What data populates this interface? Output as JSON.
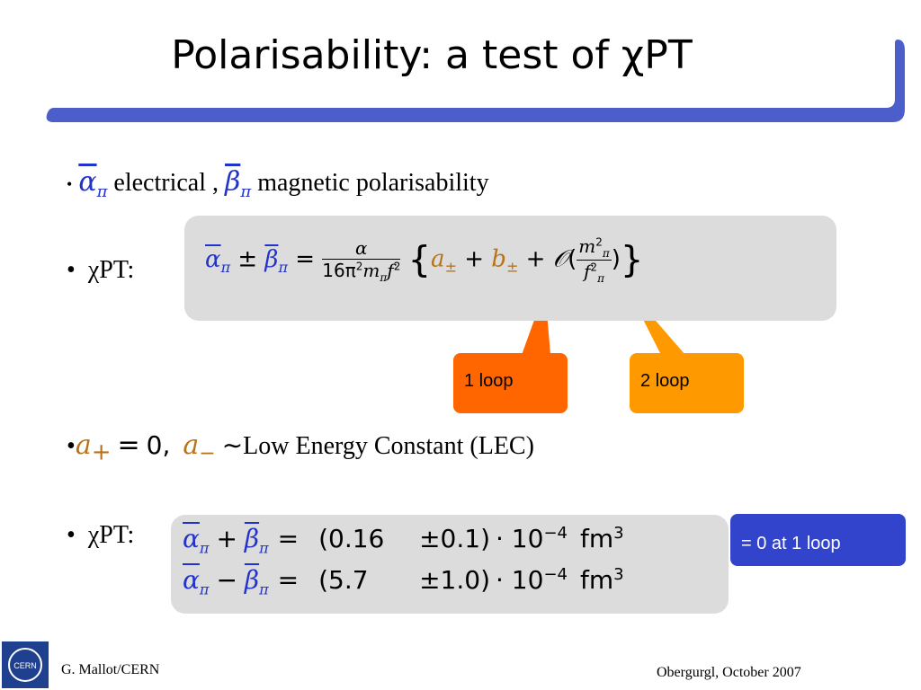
{
  "title": "Polarisability: a test of χPT",
  "symbols": {
    "alpha": "α",
    "beta": "β",
    "pi": "π",
    "eq": "=",
    "pm": "±",
    "plus": "+"
  },
  "bullet1": {
    "electrical": "electrical ,",
    "magnetic": "magnetic polarisability"
  },
  "bullet2": {
    "label": "χPT:",
    "formula": {
      "num": "α",
      "den": "16π",
      "two": "2",
      "m": "m",
      "f": "f",
      "open": "{",
      "a": "a",
      "b": "b",
      "O": "𝒪",
      "lp": "(",
      "rp": ")",
      "close": "}"
    }
  },
  "callouts": [
    "1 loop",
    "2 loop"
  ],
  "bullet3": {
    "a": "a",
    "plus_sub": "+",
    "zero": "0,",
    "minus_sub": "−",
    "sim": "∼",
    "text": "Low Energy Constant (LEC)"
  },
  "bullet4": {
    "label": "χPT:",
    "rows": [
      {
        "op": "+",
        "value": "(0.16",
        "err": "±0.1)",
        "power": "· 10",
        "exp": "−4",
        "unit": "fm",
        "unit_exp": "3"
      },
      {
        "op": "−",
        "value": "(5.7",
        "err": "±1.0)",
        "power": "· 10",
        "exp": "−4",
        "unit": "fm",
        "unit_exp": "3"
      }
    ],
    "note": "= 0 at 1 loop"
  },
  "footer": {
    "author": "G. Mallot/CERN",
    "logo": "CERN",
    "event": "Obergurgl, October 2007"
  }
}
